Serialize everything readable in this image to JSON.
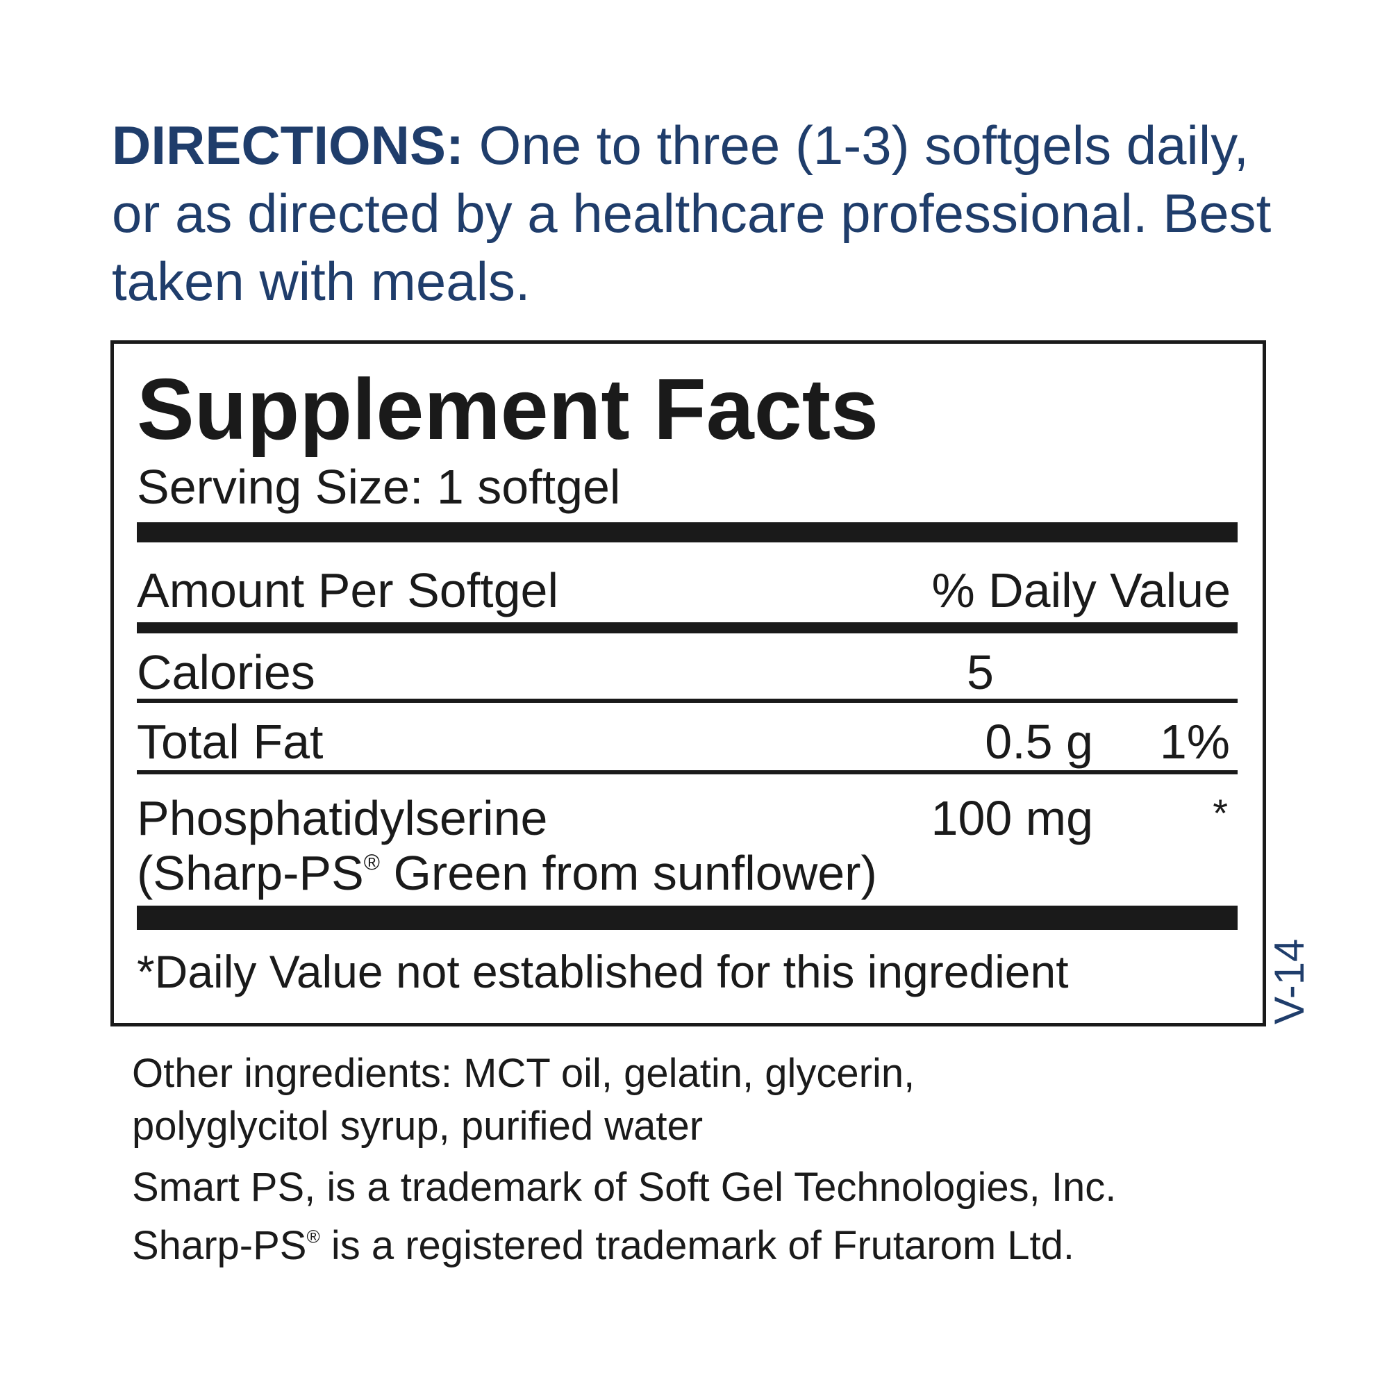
{
  "directions": {
    "label": "DIRECTIONS:",
    "text": " One to three (1-3) softgels daily, or as directed by a healthcare professional. Best taken with meals."
  },
  "facts": {
    "title": "Supplement Facts",
    "serving_size": "Serving Size: 1 softgel",
    "header_left": "Amount Per Softgel",
    "header_right": "% Daily Value",
    "rows": [
      {
        "name": "Calories",
        "amount": "5",
        "dv": ""
      },
      {
        "name": "Total Fat",
        "amount": "0.5 g",
        "dv": "1%"
      },
      {
        "name": "Phosphatidylserine",
        "amount": "100 mg",
        "dv": "*",
        "sub_prefix": "(Sharp-PS",
        "sub_mark": "®",
        "sub_suffix": " Green from sunflower)"
      }
    ],
    "footnote": "*Daily Value not established for this ingredient"
  },
  "version_code": "V-14",
  "other": {
    "line1": "Other ingredients: MCT oil, gelatin, glycerin,",
    "line2": "polyglycitol syrup, purified water",
    "line3": "Smart PS, is a trademark of Soft Gel Technologies, Inc.",
    "line4_prefix": "Sharp-PS",
    "line4_mark": "®",
    "line4_suffix": " is a registered trademark of Frutarom Ltd."
  },
  "colors": {
    "directions_blue": "#1f3d6b",
    "text": "#1a1a1a"
  }
}
